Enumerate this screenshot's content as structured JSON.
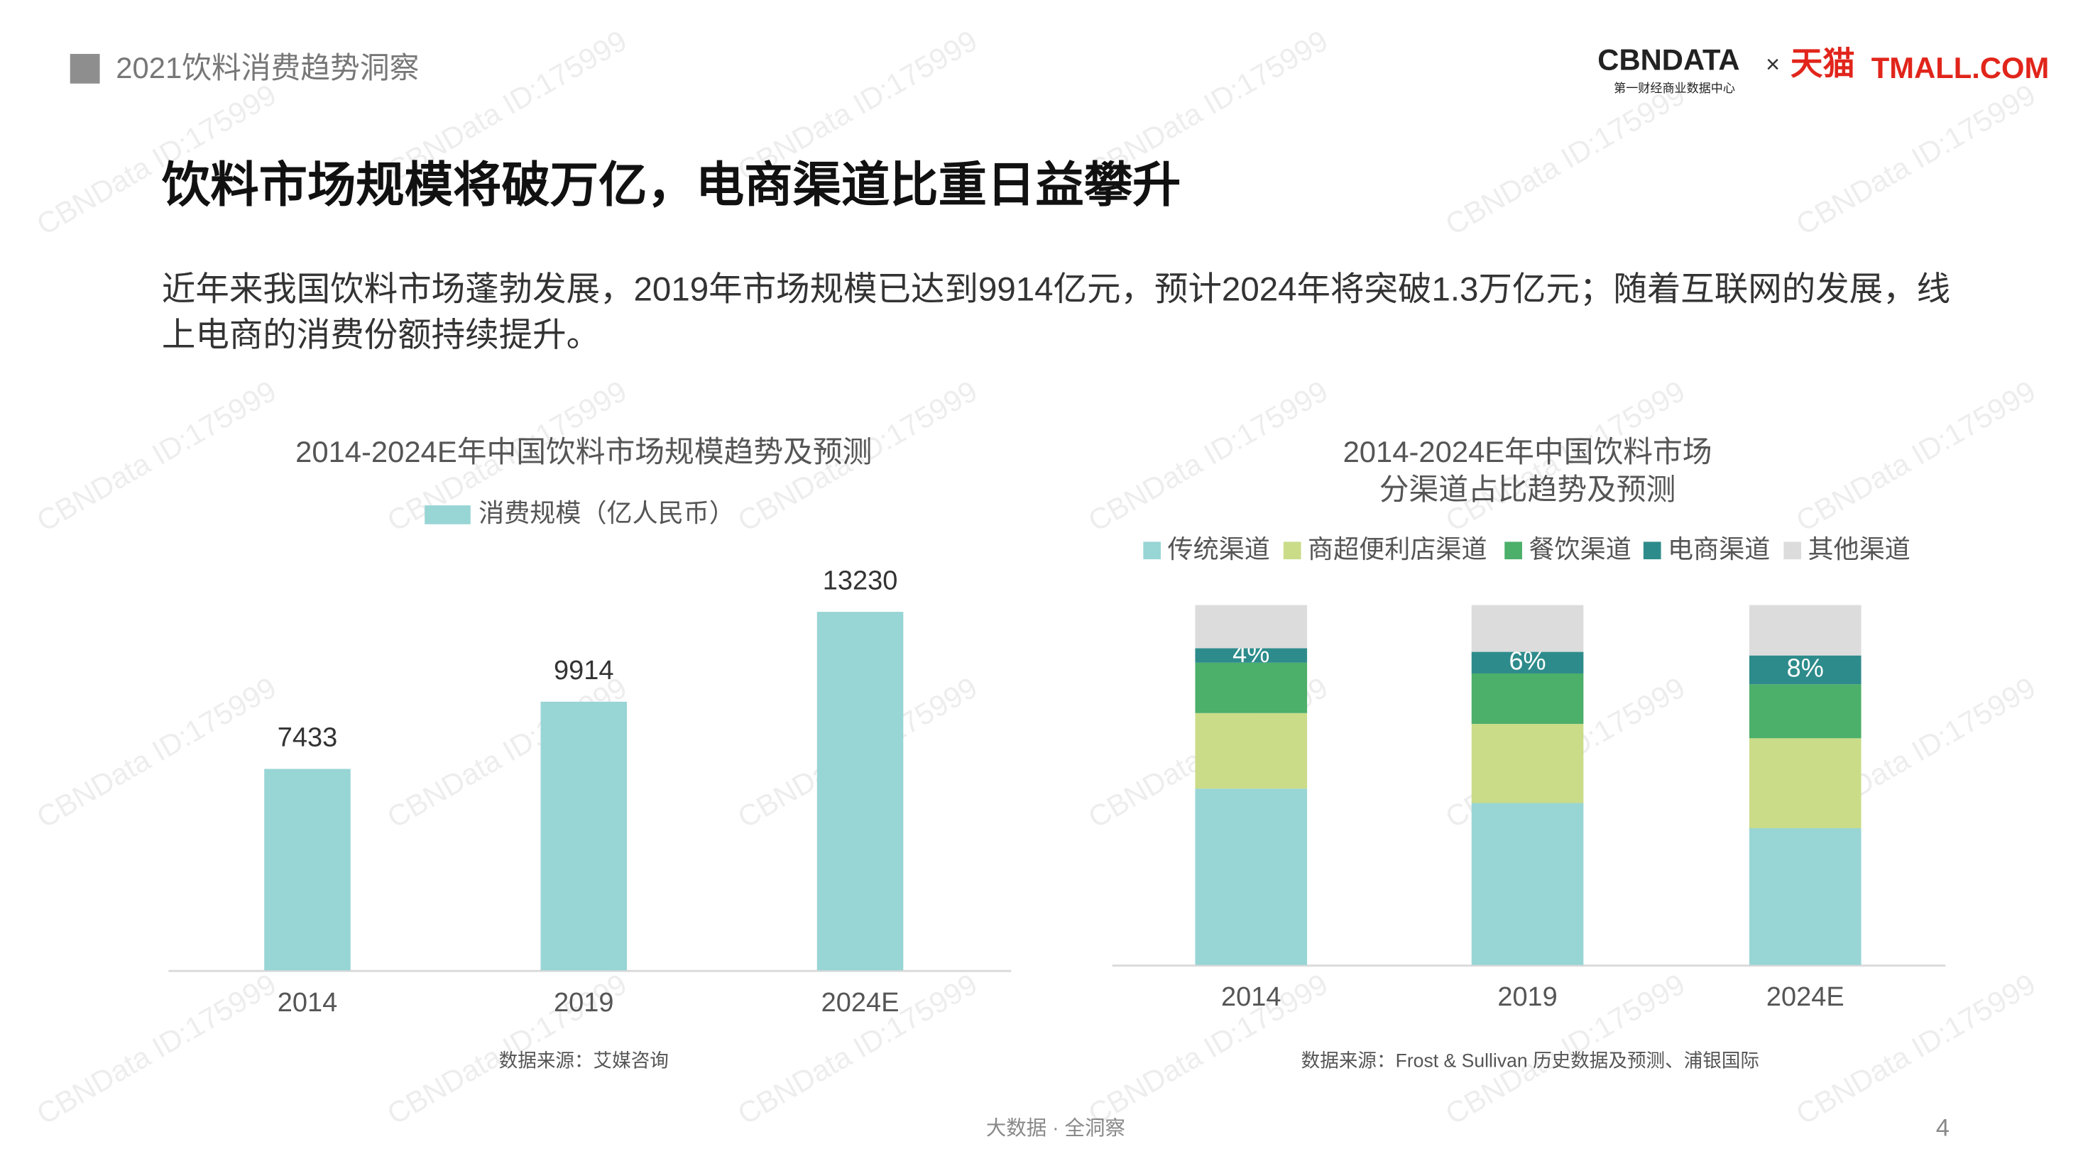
{
  "header": {
    "section": "2021饮料消费趋势洞察",
    "logo_main": "CBNDATA",
    "logo_sub": "第一财经商业数据中心",
    "logo_x": "×",
    "logo_tmall_cn": "天猫",
    "logo_tmall_en": "TMALL.COM"
  },
  "title": "饮料市场规模将破万亿，电商渠道比重日益攀升",
  "paragraph": "近年来我国饮料市场蓬勃发展，2019年市场规模已达到9914亿元，预计2024年将突破1.3万亿元；随着互联网的发展，线上电商的消费份额持续提升。",
  "watermark": "CBNData ID:175999",
  "footer": {
    "slogan": "大数据 · 全洞察",
    "page": "4"
  },
  "chart_data": [
    {
      "type": "bar",
      "title": "2014-2024E年中国饮料市场规模趋势及预测",
      "categories": [
        "2014",
        "2019",
        "2024E"
      ],
      "series": [
        {
          "name": "消费规模（亿人民币）",
          "color": "#98d5d5",
          "values": [
            7433,
            9914,
            13230
          ]
        }
      ],
      "source": "数据来源：艾媒咨询"
    },
    {
      "type": "stacked_bar",
      "title_lines": [
        "2014-2024E年中国饮料市场",
        "分渠道占比趋势及预测"
      ],
      "categories": [
        "2014",
        "2019",
        "2024E"
      ],
      "series": [
        {
          "name": "传统渠道",
          "color": "#98d5d5",
          "values": [
            49,
            45,
            38
          ]
        },
        {
          "name": "商超便利店渠道",
          "color": "#cadc88",
          "values": [
            21,
            22,
            25
          ]
        },
        {
          "name": "餐饮渠道",
          "color": "#4caf6a",
          "values": [
            14,
            14,
            15
          ]
        },
        {
          "name": "电商渠道",
          "color": "#2e8b8b",
          "values": [
            4,
            6,
            8
          ],
          "value_labels": [
            "4%",
            "6%",
            "8%"
          ]
        },
        {
          "name": "其他渠道",
          "color": "#dcdcdc",
          "values": [
            12,
            13,
            14
          ]
        }
      ],
      "source": "数据来源：Frost & Sullivan 历史数据及预测、浦银国际"
    }
  ]
}
